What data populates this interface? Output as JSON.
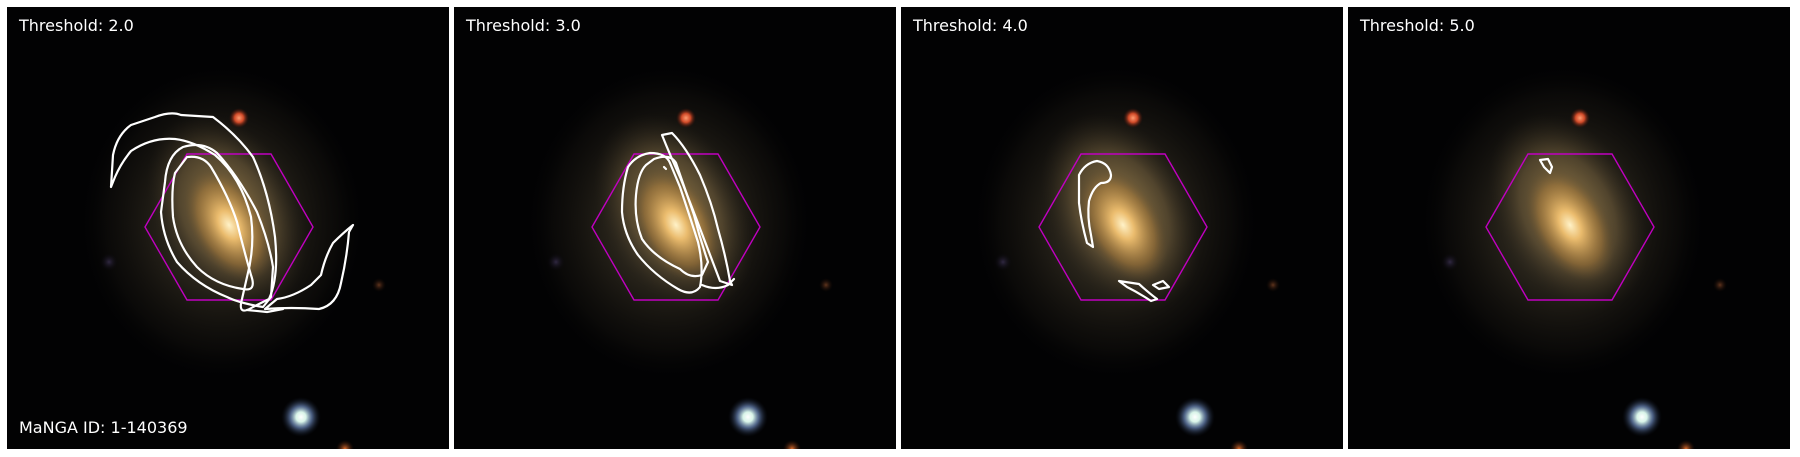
{
  "panels": [
    {
      "threshold_label": "Threshold: 2.0",
      "id_label": "MaNGA ID: 1-140369"
    },
    {
      "threshold_label": "Threshold: 3.0",
      "id_label": ""
    },
    {
      "threshold_label": "Threshold: 4.0",
      "id_label": ""
    },
    {
      "threshold_label": "Threshold: 5.0",
      "id_label": ""
    }
  ],
  "colors": {
    "hexagon": "#c000c0",
    "contour": "#ffffff",
    "background": "#020203",
    "galaxy_core": "#f0c070"
  }
}
